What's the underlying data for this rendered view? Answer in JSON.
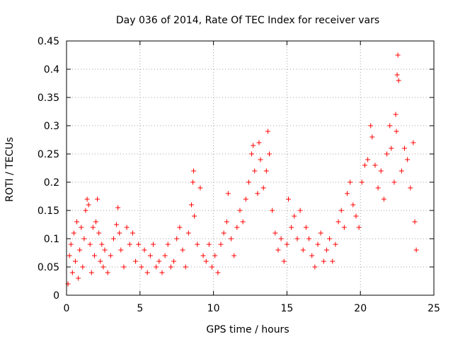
{
  "colors": {
    "points": "#ff0000",
    "axes": "#000000",
    "grid": "#a0a0a0",
    "background": "#ffffff"
  },
  "chart_data": {
    "type": "scatter",
    "title": "Day 036 of 2014, Rate Of TEC Index for receiver vars",
    "xlabel": "GPS time / hours",
    "ylabel": "ROTI / TECUs",
    "xlim": [
      0,
      25
    ],
    "ylim": [
      0,
      0.45
    ],
    "grid": true,
    "marker": "plus",
    "x_ticks": [
      0,
      5,
      10,
      15,
      20,
      25
    ],
    "x_tick_labels": [
      "0",
      "5",
      "10",
      "15",
      "20",
      "25"
    ],
    "y_ticks": [
      0,
      0.05,
      0.1,
      0.15,
      0.2,
      0.25,
      0.3,
      0.35,
      0.4,
      0.45
    ],
    "y_tick_labels": [
      "0",
      "0.05",
      "0.1",
      "0.15",
      "0.2",
      "0.25",
      "0.3",
      "0.35",
      "0.4",
      "0.45"
    ],
    "series": [
      {
        "name": "ROTI",
        "points": [
          [
            0.1,
            0.02
          ],
          [
            0.2,
            0.07
          ],
          [
            0.3,
            0.09
          ],
          [
            0.4,
            0.04
          ],
          [
            0.5,
            0.11
          ],
          [
            0.6,
            0.06
          ],
          [
            0.7,
            0.13
          ],
          [
            0.8,
            0.03
          ],
          [
            0.9,
            0.08
          ],
          [
            1.0,
            0.12
          ],
          [
            1.1,
            0.05
          ],
          [
            1.2,
            0.1
          ],
          [
            1.3,
            0.15
          ],
          [
            1.4,
            0.17
          ],
          [
            1.5,
            0.16
          ],
          [
            1.6,
            0.09
          ],
          [
            1.7,
            0.04
          ],
          [
            1.8,
            0.12
          ],
          [
            1.9,
            0.07
          ],
          [
            2.0,
            0.13
          ],
          [
            2.1,
            0.17
          ],
          [
            2.2,
            0.11
          ],
          [
            2.3,
            0.06
          ],
          [
            2.4,
            0.09
          ],
          [
            2.5,
            0.05
          ],
          [
            2.6,
            0.08
          ],
          [
            2.8,
            0.04
          ],
          [
            3.0,
            0.07
          ],
          [
            3.2,
            0.1
          ],
          [
            3.4,
            0.125
          ],
          [
            3.5,
            0.155
          ],
          [
            3.6,
            0.11
          ],
          [
            3.7,
            0.08
          ],
          [
            3.9,
            0.05
          ],
          [
            4.1,
            0.12
          ],
          [
            4.3,
            0.09
          ],
          [
            4.5,
            0.11
          ],
          [
            4.7,
            0.06
          ],
          [
            4.9,
            0.09
          ],
          [
            5.1,
            0.05
          ],
          [
            5.3,
            0.08
          ],
          [
            5.5,
            0.04
          ],
          [
            5.7,
            0.07
          ],
          [
            5.9,
            0.09
          ],
          [
            6.1,
            0.05
          ],
          [
            6.3,
            0.06
          ],
          [
            6.5,
            0.04
          ],
          [
            6.7,
            0.07
          ],
          [
            6.9,
            0.09
          ],
          [
            7.1,
            0.05
          ],
          [
            7.3,
            0.06
          ],
          [
            7.5,
            0.1
          ],
          [
            7.7,
            0.12
          ],
          [
            7.9,
            0.08
          ],
          [
            8.1,
            0.05
          ],
          [
            8.3,
            0.11
          ],
          [
            8.5,
            0.16
          ],
          [
            8.6,
            0.2
          ],
          [
            8.65,
            0.22
          ],
          [
            8.7,
            0.14
          ],
          [
            8.9,
            0.09
          ],
          [
            9.1,
            0.19
          ],
          [
            9.3,
            0.07
          ],
          [
            9.5,
            0.06
          ],
          [
            9.7,
            0.09
          ],
          [
            9.9,
            0.05
          ],
          [
            10.1,
            0.07
          ],
          [
            10.3,
            0.04
          ],
          [
            10.5,
            0.09
          ],
          [
            10.7,
            0.11
          ],
          [
            10.9,
            0.13
          ],
          [
            11.0,
            0.18
          ],
          [
            11.2,
            0.1
          ],
          [
            11.4,
            0.07
          ],
          [
            11.6,
            0.12
          ],
          [
            11.8,
            0.15
          ],
          [
            12.0,
            0.13
          ],
          [
            12.2,
            0.17
          ],
          [
            12.4,
            0.2
          ],
          [
            12.6,
            0.25
          ],
          [
            12.7,
            0.265
          ],
          [
            12.8,
            0.22
          ],
          [
            13.0,
            0.18
          ],
          [
            13.1,
            0.27
          ],
          [
            13.2,
            0.24
          ],
          [
            13.4,
            0.19
          ],
          [
            13.6,
            0.22
          ],
          [
            13.7,
            0.29
          ],
          [
            13.8,
            0.25
          ],
          [
            14.0,
            0.15
          ],
          [
            14.2,
            0.11
          ],
          [
            14.4,
            0.08
          ],
          [
            14.6,
            0.1
          ],
          [
            14.8,
            0.06
          ],
          [
            15.0,
            0.09
          ],
          [
            15.1,
            0.17
          ],
          [
            15.3,
            0.12
          ],
          [
            15.5,
            0.14
          ],
          [
            15.7,
            0.1
          ],
          [
            15.9,
            0.15
          ],
          [
            16.1,
            0.08
          ],
          [
            16.3,
            0.12
          ],
          [
            16.5,
            0.1
          ],
          [
            16.7,
            0.07
          ],
          [
            16.9,
            0.05
          ],
          [
            17.1,
            0.09
          ],
          [
            17.3,
            0.11
          ],
          [
            17.5,
            0.06
          ],
          [
            17.7,
            0.08
          ],
          [
            17.9,
            0.1
          ],
          [
            18.1,
            0.06
          ],
          [
            18.3,
            0.09
          ],
          [
            18.5,
            0.13
          ],
          [
            18.7,
            0.15
          ],
          [
            18.9,
            0.12
          ],
          [
            19.1,
            0.18
          ],
          [
            19.3,
            0.2
          ],
          [
            19.5,
            0.16
          ],
          [
            19.7,
            0.14
          ],
          [
            19.9,
            0.12
          ],
          [
            20.1,
            0.2
          ],
          [
            20.3,
            0.23
          ],
          [
            20.5,
            0.24
          ],
          [
            20.7,
            0.3
          ],
          [
            20.8,
            0.28
          ],
          [
            21.0,
            0.23
          ],
          [
            21.2,
            0.19
          ],
          [
            21.4,
            0.22
          ],
          [
            21.6,
            0.17
          ],
          [
            21.8,
            0.25
          ],
          [
            22.0,
            0.3
          ],
          [
            22.1,
            0.26
          ],
          [
            22.3,
            0.2
          ],
          [
            22.4,
            0.32
          ],
          [
            22.45,
            0.29
          ],
          [
            22.5,
            0.39
          ],
          [
            22.55,
            0.425
          ],
          [
            22.6,
            0.38
          ],
          [
            22.8,
            0.22
          ],
          [
            23.0,
            0.26
          ],
          [
            23.2,
            0.24
          ],
          [
            23.4,
            0.19
          ],
          [
            23.6,
            0.27
          ],
          [
            23.7,
            0.13
          ],
          [
            23.8,
            0.08
          ]
        ]
      }
    ]
  }
}
